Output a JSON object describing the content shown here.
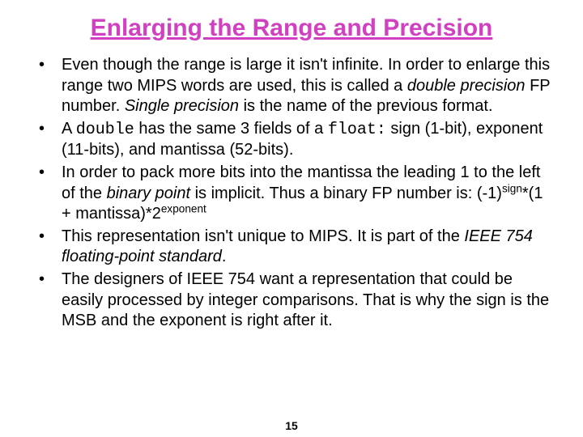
{
  "title": "Enlarging the Range and Precision",
  "title_color": "#d040c0",
  "background_color": "#ffffff",
  "text_color": "#000000",
  "bullets": {
    "b1a": "Even though the range is large it isn't infinite. In order to enlarge this range two MIPS words are used, this is called a ",
    "b1i1": "double precision",
    "b1b": " FP number. ",
    "b1i2": "Single precision",
    "b1c": " is the name of the previous format.",
    "b2a": "A ",
    "b2m1": "double",
    "b2b": " has the same 3 fields of a ",
    "b2m2": "float:",
    "b2c": " sign (1-bit), exponent (11-bits), and mantissa (52-bits).",
    "b3a": "In order to pack more bits into the mantissa the leading 1 to the left of the ",
    "b3i1": "binary point",
    "b3b": " is implicit. Thus a binary FP number is: (-1)",
    "b3s1": "sign",
    "b3c": "*(1 + mantissa)*2",
    "b3s2": "exponent",
    "b4a": "This representation isn't unique to MIPS. It is part of the ",
    "b4i1": "IEEE 754 floating-point standard",
    "b4b": ".",
    "b5": "The designers of IEEE 754 want a representation that could be easily processed by integer comparisons.  That is why the sign is the MSB and the exponent is right after it."
  },
  "page_number": "15"
}
